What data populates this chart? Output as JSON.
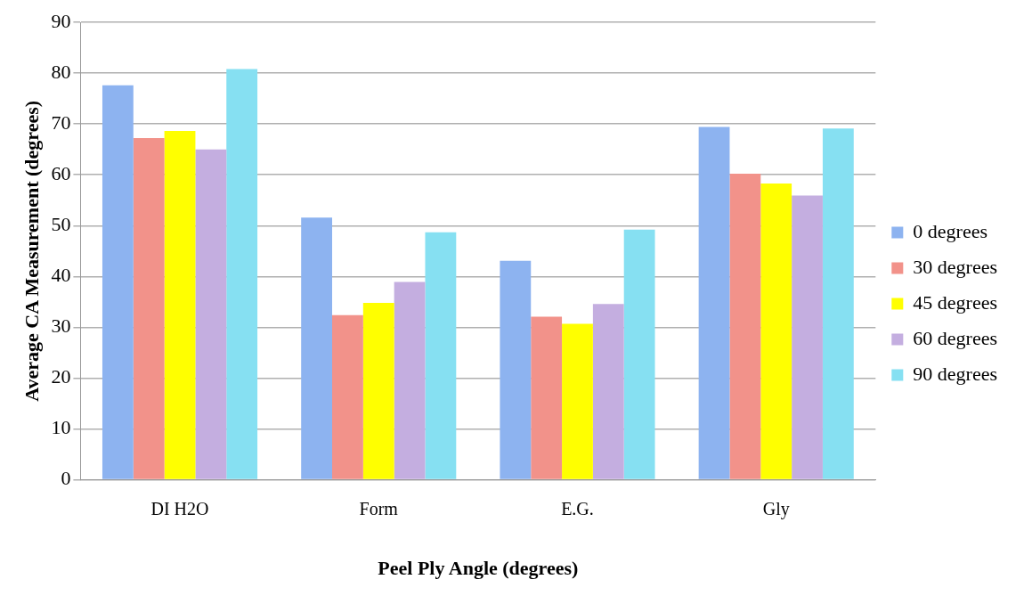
{
  "chart_data": {
    "type": "bar",
    "xlabel": "Peel Ply Angle (degrees)",
    "ylabel": "Average CA Measurement (degrees)",
    "categories": [
      "DI H2O",
      "Form",
      "E.G.",
      "Gly"
    ],
    "series": [
      {
        "name": "0 degrees",
        "color": "#8db3f0",
        "values": [
          77.6,
          51.6,
          43.1,
          69.4
        ]
      },
      {
        "name": "30 degrees",
        "color": "#f2928a",
        "values": [
          67.2,
          32.4,
          32.1,
          60.2
        ]
      },
      {
        "name": "45 degrees",
        "color": "#ffff00",
        "values": [
          68.6,
          34.8,
          30.7,
          58.3
        ]
      },
      {
        "name": "60 degrees",
        "color": "#c4aee0",
        "values": [
          65.0,
          38.9,
          34.6,
          55.9
        ]
      },
      {
        "name": "90 degrees",
        "color": "#86e0f2",
        "values": [
          80.8,
          48.7,
          49.2,
          69.1
        ]
      }
    ],
    "ylim": [
      0,
      90
    ],
    "yticks": [
      0,
      10,
      20,
      30,
      40,
      50,
      60,
      70,
      80,
      90
    ],
    "grid": "y",
    "legend": "right"
  }
}
